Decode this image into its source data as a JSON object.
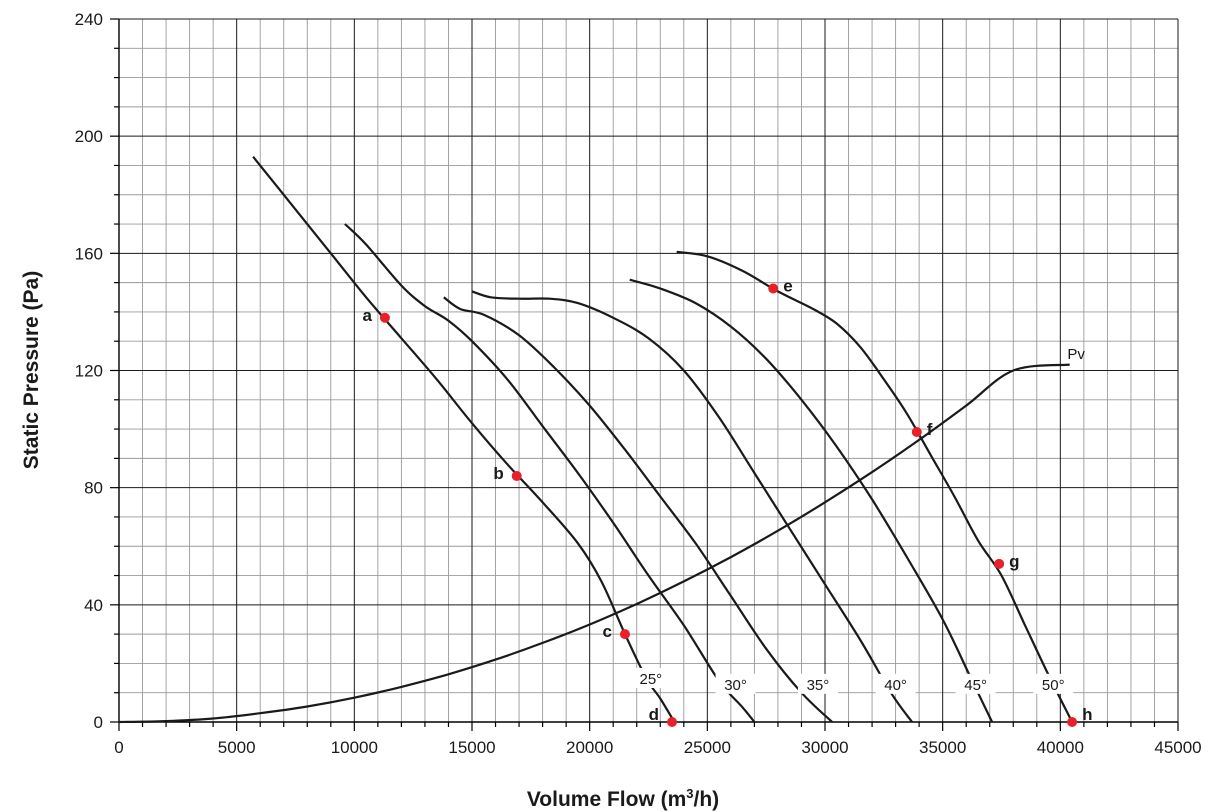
{
  "chart_data": {
    "type": "line",
    "xlabel": "Volume Flow (m",
    "xlabel_sup": "3",
    "xlabel_tail": "/h)",
    "ylabel": "Static Pressure (Pa)",
    "xlim": [
      0,
      45000
    ],
    "ylim": [
      0,
      240
    ],
    "x_ticks": [
      "0",
      "5000",
      "10000",
      "15000",
      "20000",
      "25000",
      "30000",
      "35000",
      "40000",
      "45000"
    ],
    "y_ticks": [
      "0",
      "40",
      "80",
      "120",
      "160",
      "200",
      "240"
    ],
    "grid": true,
    "series": [
      {
        "name": "25°",
        "label_at": [
          22600,
          14
        ],
        "points": [
          [
            5700,
            193
          ],
          [
            7500,
            175
          ],
          [
            9000,
            160
          ],
          [
            10500,
            145
          ],
          [
            12000,
            131
          ],
          [
            13500,
            117
          ],
          [
            15000,
            102
          ],
          [
            16500,
            88
          ],
          [
            18000,
            75
          ],
          [
            19500,
            61
          ],
          [
            20500,
            48
          ],
          [
            21500,
            30
          ],
          [
            22400,
            15
          ],
          [
            23000,
            8
          ],
          [
            23600,
            0
          ]
        ]
      },
      {
        "name": "30°",
        "label_at": [
          26200,
          12
        ],
        "points": [
          [
            9600,
            170
          ],
          [
            10500,
            163
          ],
          [
            12000,
            149
          ],
          [
            13000,
            142
          ],
          [
            14000,
            137
          ],
          [
            15000,
            130
          ],
          [
            16500,
            117
          ],
          [
            18000,
            101
          ],
          [
            19500,
            85
          ],
          [
            21000,
            68
          ],
          [
            22500,
            50
          ],
          [
            24000,
            33
          ],
          [
            25500,
            14
          ],
          [
            26500,
            5
          ],
          [
            27000,
            0
          ]
        ]
      },
      {
        "name": "35°",
        "label_at": [
          29700,
          12
        ],
        "points": [
          [
            13800,
            145
          ],
          [
            14500,
            141
          ],
          [
            15500,
            139
          ],
          [
            17000,
            132
          ],
          [
            18500,
            121
          ],
          [
            20000,
            108
          ],
          [
            21500,
            93
          ],
          [
            23000,
            77
          ],
          [
            24500,
            61
          ],
          [
            26000,
            43
          ],
          [
            27500,
            25
          ],
          [
            29000,
            10
          ],
          [
            30300,
            0
          ]
        ]
      },
      {
        "name": "40°",
        "label_at": [
          33000,
          12
        ],
        "points": [
          [
            15000,
            147
          ],
          [
            15800,
            145
          ],
          [
            17000,
            144.5
          ],
          [
            18300,
            144.5
          ],
          [
            19500,
            143
          ],
          [
            21000,
            138
          ],
          [
            22500,
            131
          ],
          [
            24000,
            120
          ],
          [
            25500,
            104
          ],
          [
            27000,
            85
          ],
          [
            28500,
            66
          ],
          [
            30000,
            47
          ],
          [
            31500,
            28
          ],
          [
            32800,
            10
          ],
          [
            33700,
            0
          ]
        ]
      },
      {
        "name": "45°",
        "label_at": [
          36400,
          12
        ],
        "points": [
          [
            21700,
            151
          ],
          [
            23000,
            148
          ],
          [
            24500,
            143
          ],
          [
            26000,
            135
          ],
          [
            27500,
            124
          ],
          [
            29000,
            110
          ],
          [
            30500,
            94
          ],
          [
            32000,
            76
          ],
          [
            33500,
            56
          ],
          [
            35000,
            35
          ],
          [
            36200,
            15
          ],
          [
            37100,
            0
          ]
        ]
      },
      {
        "name": "50°",
        "label_at": [
          39700,
          12
        ],
        "points": [
          [
            23700,
            160.5
          ],
          [
            25000,
            159
          ],
          [
            26500,
            154
          ],
          [
            28000,
            147
          ],
          [
            29500,
            141
          ],
          [
            30500,
            136
          ],
          [
            31500,
            128
          ],
          [
            32500,
            117
          ],
          [
            33500,
            105
          ],
          [
            34500,
            91
          ],
          [
            35500,
            77
          ],
          [
            36500,
            62
          ],
          [
            37500,
            50
          ],
          [
            38500,
            33
          ],
          [
            39500,
            16
          ],
          [
            40500,
            0
          ]
        ]
      },
      {
        "name": "Pv",
        "label_at": [
          40300,
          124
        ],
        "points": [
          [
            0,
            0
          ],
          [
            2000,
            0.3
          ],
          [
            4000,
            1.2
          ],
          [
            6000,
            3
          ],
          [
            8000,
            5.3
          ],
          [
            10000,
            8.3
          ],
          [
            12000,
            12
          ],
          [
            14000,
            16.3
          ],
          [
            16000,
            21.3
          ],
          [
            18000,
            27
          ],
          [
            20000,
            33.3
          ],
          [
            22000,
            40.3
          ],
          [
            24000,
            48
          ],
          [
            26000,
            56.3
          ],
          [
            28000,
            65.3
          ],
          [
            30000,
            75
          ],
          [
            32000,
            85.3
          ],
          [
            34000,
            96.3
          ],
          [
            36000,
            108
          ],
          [
            38000,
            120
          ],
          [
            40400,
            122
          ]
        ]
      }
    ],
    "operating_points": [
      {
        "label": "a",
        "x": 11300,
        "y": 138
      },
      {
        "label": "b",
        "x": 16900,
        "y": 84
      },
      {
        "label": "c",
        "x": 21500,
        "y": 30
      },
      {
        "label": "d",
        "x": 23500,
        "y": 0
      },
      {
        "label": "e",
        "x": 27800,
        "y": 148
      },
      {
        "label": "f",
        "x": 33900,
        "y": 99
      },
      {
        "label": "g",
        "x": 37400,
        "y": 54
      },
      {
        "label": "h",
        "x": 40500,
        "y": 0
      }
    ],
    "colors": {
      "curve": "#1a1a1a",
      "grid_major": "#1a1a1a",
      "grid_minor": "#9a9a9a",
      "point": "#e8202a"
    }
  }
}
